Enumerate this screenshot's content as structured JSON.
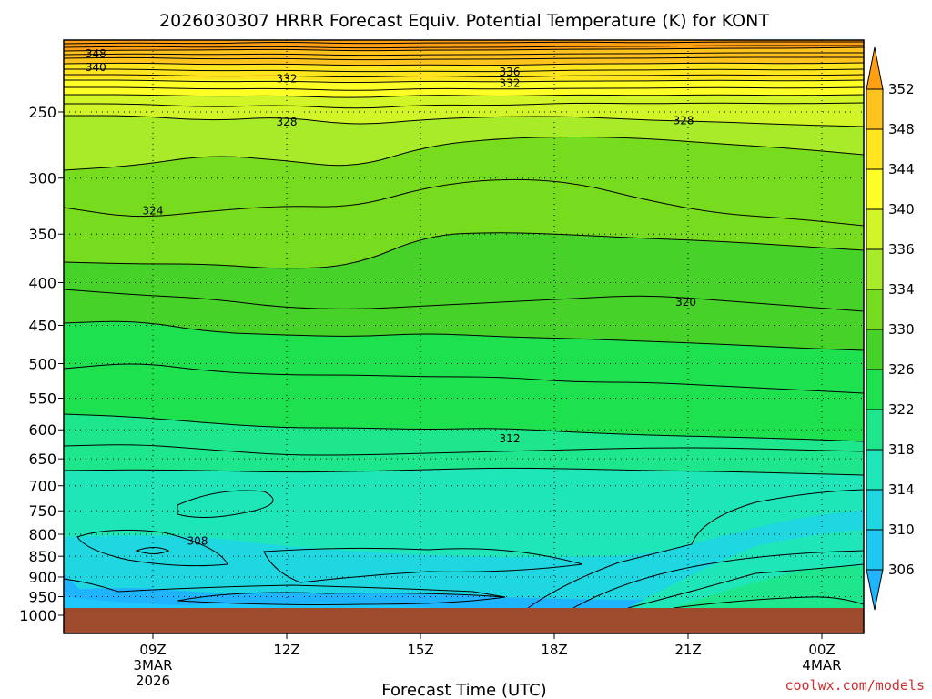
{
  "chart_data": {
    "type": "heatmap",
    "title": "2026030307 HRRR Forecast Equiv. Potential Temperature (K) for KONT",
    "xlabel": "Forecast Time (UTC)",
    "y_ticks": [
      250,
      300,
      350,
      400,
      450,
      500,
      550,
      600,
      650,
      700,
      750,
      800,
      850,
      900,
      950,
      1000
    ],
    "ylim": [
      1000,
      200
    ],
    "y_scale": "log",
    "x_ticks": [
      {
        "label": "09Z",
        "sub": [
          "3MAR",
          "2026"
        ]
      },
      {
        "label": "12Z",
        "sub": []
      },
      {
        "label": "15Z",
        "sub": []
      },
      {
        "label": "18Z",
        "sub": []
      },
      {
        "label": "21Z",
        "sub": []
      },
      {
        "label": "00Z",
        "sub": [
          "4MAR"
        ]
      }
    ],
    "colorbar_levels": [
      352,
      348,
      344,
      340,
      336,
      334,
      330,
      326,
      322,
      318,
      314,
      310,
      306
    ],
    "colorbar_colors": [
      "#ffa014",
      "#ffc31e",
      "#ffe61e",
      "#ffff28",
      "#d2f528",
      "#a8eb28",
      "#78dc1e",
      "#46d228",
      "#1ee150",
      "#1ee68c",
      "#1ee6b9",
      "#1ed7e1",
      "#1ec8f0",
      "#1eb4ff"
    ],
    "contour_labels": [
      {
        "text": "348",
        "x": 7.72,
        "p": 213
      },
      {
        "text": "340",
        "x": 7.72,
        "p": 221
      },
      {
        "text": "332",
        "x": 12.0,
        "p": 228
      },
      {
        "text": "336",
        "x": 17.0,
        "p": 224
      },
      {
        "text": "332",
        "x": 17.0,
        "p": 231
      },
      {
        "text": "328",
        "x": 12.0,
        "p": 257
      },
      {
        "text": "328",
        "x": 20.9,
        "p": 256
      },
      {
        "text": "324",
        "x": 9.0,
        "p": 328
      },
      {
        "text": "320",
        "x": 20.95,
        "p": 422
      },
      {
        "text": "312",
        "x": 17.0,
        "p": 615
      },
      {
        "text": "308",
        "x": 10.0,
        "p": 815
      }
    ],
    "credit": "coolwx.com/models"
  }
}
